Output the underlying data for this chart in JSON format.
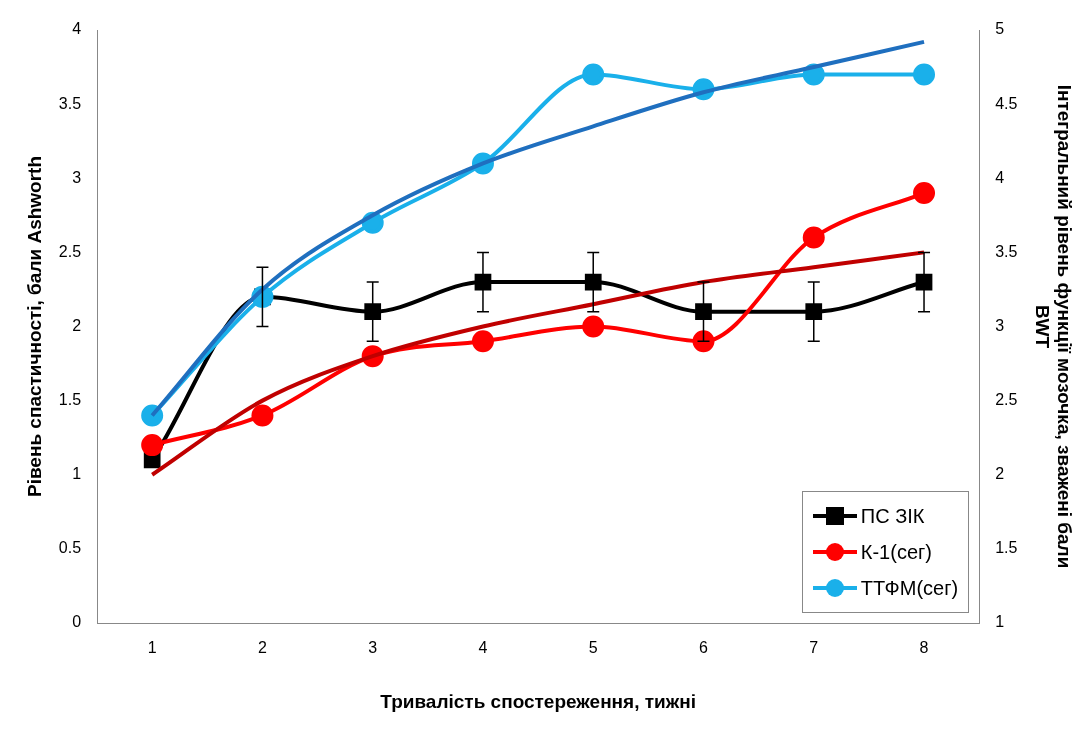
{
  "chart_data": {
    "type": "line",
    "xlabel": "Тривалість спостереження, тижні",
    "ylabel": "Рівень спастичності, бали Ashworth",
    "y2label": "Інтегральний рівень функції мозочка, зважені бали BWT",
    "categories": [
      "1",
      "2",
      "3",
      "4",
      "5",
      "6",
      "7",
      "8"
    ],
    "ylim": [
      0,
      4
    ],
    "yticks": [
      0,
      0.5,
      1,
      1.5,
      2,
      2.5,
      3,
      3.5,
      4
    ],
    "y2lim": [
      1,
      5
    ],
    "y2ticks": [
      1,
      1.5,
      2,
      2.5,
      3,
      3.5,
      4,
      4.5,
      5
    ],
    "grid": false,
    "legend": "bottom right",
    "series": [
      {
        "name": "ПС ЗІК",
        "color": "#000000",
        "marker": "square",
        "values": [
          1.1,
          2.2,
          2.1,
          2.3,
          2.3,
          2.1,
          2.1,
          2.3
        ],
        "errors": [
          null,
          0.2,
          0.2,
          0.2,
          0.2,
          0.2,
          0.2,
          0.2
        ]
      },
      {
        "name": "К-1(сег)",
        "color": "#ff0000",
        "marker": "circle",
        "axis": "y2",
        "values": [
          2.2,
          2.4,
          2.8,
          2.9,
          3.0,
          2.9,
          3.6,
          3.9
        ]
      },
      {
        "name": "ТТФМ(сег)",
        "color": "#1ab0ea",
        "marker": "circle",
        "axis": "y2",
        "values": [
          2.4,
          3.2,
          3.7,
          4.1,
          4.7,
          4.6,
          4.7,
          4.7
        ]
      },
      {
        "color": "#c00000",
        "marker": "none",
        "axis": "y2",
        "values": [
          2.0,
          2.5,
          2.8,
          3.0,
          3.15,
          3.3,
          3.4,
          3.5
        ]
      },
      {
        "color": "#1f6fbf",
        "marker": "none",
        "axis": "y2",
        "values": [
          2.4,
          3.25,
          3.75,
          4.1,
          4.35,
          4.58,
          4.75,
          4.92
        ]
      }
    ]
  }
}
